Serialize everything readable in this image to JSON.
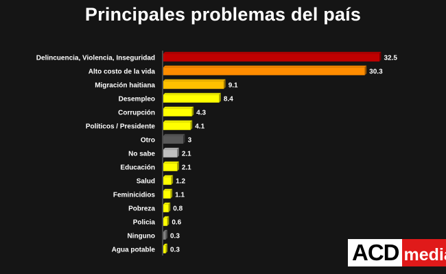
{
  "title": "Principales problemas del país",
  "chart_data": {
    "type": "bar",
    "orientation": "horizontal",
    "categories": [
      "Delincuencia, Violencia, Inseguridad",
      "Alto costo de la vida",
      "Migración haitiana",
      "Desempleo",
      "Corrupción",
      "Políticos / Presidente",
      "Otro",
      "No sabe",
      "Educación",
      "Salud",
      "Feminicidios",
      "Pobreza",
      "Policia",
      "Ninguno",
      "Agua potable"
    ],
    "values": [
      32.5,
      30.3,
      9.1,
      8.4,
      4.3,
      4.1,
      3,
      2.1,
      2.1,
      1.2,
      1.1,
      0.8,
      0.6,
      0.3,
      0.3
    ],
    "value_labels": [
      "32.5",
      "30.3",
      "9.1",
      "8.4",
      "4.3",
      "4.1",
      "3",
      "2.1",
      "2.1",
      "1.2",
      "1.1",
      "0.8",
      "0.6",
      "0.3",
      "0.3"
    ],
    "colors": [
      "#c00000",
      "#ff8c00",
      "#ffc000",
      "#ffff00",
      "#ffff00",
      "#ffff00",
      "#595959",
      "#bfbfbf",
      "#ffff00",
      "#ffff00",
      "#ffff00",
      "#ffff00",
      "#ffff00",
      "#808080",
      "#ffff00"
    ],
    "xlim": [
      0,
      32.5
    ],
    "grid": false,
    "legend": "none"
  },
  "logo": {
    "part1": "ACD",
    "part2": "media"
  }
}
